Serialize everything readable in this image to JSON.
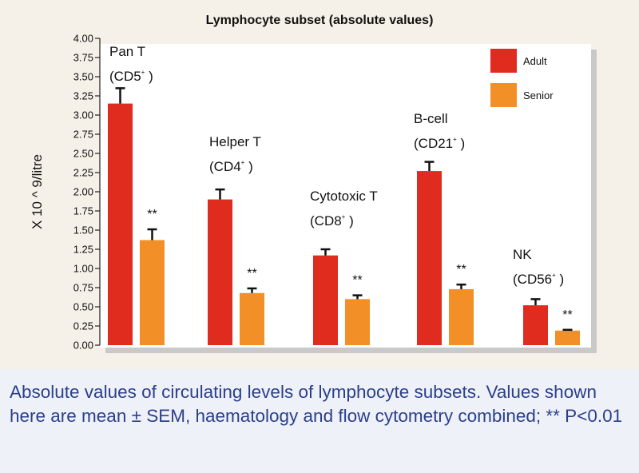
{
  "chart_data": {
    "type": "bar",
    "title": "Lymphocyte subset (absolute values)",
    "ylabel": "X 10 ^ 9/litre",
    "xlabel": "",
    "ylim": [
      0,
      4.0
    ],
    "ytick_labels": [
      "0.00",
      "0.25",
      "0.50",
      "0.75",
      "1.00",
      "1.25",
      "1.50",
      "1.75",
      "2.00",
      "2.25",
      "2.50",
      "2.75",
      "3.00",
      "3.25",
      "3.50",
      "3.75",
      "4.00"
    ],
    "categories": [
      {
        "name": "Pan T",
        "marker": "(CD5",
        "sup": "+",
        "close": ")"
      },
      {
        "name": "Helper T",
        "marker": "(CD4",
        "sup": "+",
        "close": ")"
      },
      {
        "name": "Cytotoxic T",
        "marker": "(CD8",
        "sup": "+",
        "close": ")"
      },
      {
        "name": "B-cell",
        "marker": "(CD21",
        "sup": "+",
        "close": ")"
      },
      {
        "name": "NK",
        "marker": "(CD56",
        "sup": "+",
        "close": ")"
      }
    ],
    "series": [
      {
        "name": "Adult",
        "color": "#e02b1f",
        "values": [
          3.15,
          1.9,
          1.17,
          2.27,
          0.52
        ],
        "errors": [
          0.2,
          0.13,
          0.08,
          0.12,
          0.08
        ]
      },
      {
        "name": "Senior",
        "color": "#f28f26",
        "values": [
          1.37,
          0.68,
          0.6,
          0.73,
          0.19
        ],
        "errors": [
          0.14,
          0.06,
          0.05,
          0.06,
          0.01
        ]
      }
    ],
    "significance": [
      "**",
      "**",
      "**",
      "**",
      "**"
    ],
    "legend_position": "top-right",
    "grid": false
  },
  "caption": {
    "text": "Absolute values of circulating levels of lymphocyte subsets. Values shown here are mean ± SEM, haematology and flow cytometry combined; ** P<0.01"
  },
  "colors": {
    "adult": "#e02b1f",
    "senior": "#f28f26",
    "caption_text": "#2b3f8c",
    "plot_bg": "#ffffff",
    "shadow": "#c9c9c9"
  }
}
